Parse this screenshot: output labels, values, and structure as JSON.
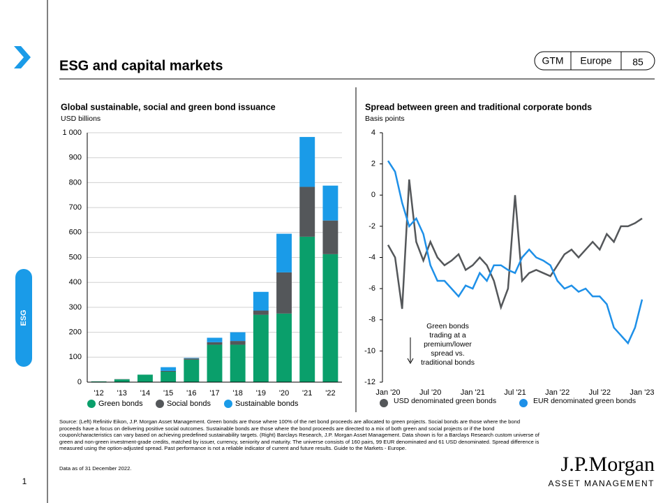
{
  "header": {
    "title": "ESG and capital markets",
    "badges": [
      "GTM",
      "Europe",
      "85"
    ]
  },
  "nav": {
    "section": "ESG"
  },
  "chart_data": [
    {
      "type": "bar",
      "stacked": true,
      "title": "Global sustainable, social and green bond issuance",
      "subtitle": "USD billions",
      "categories": [
        "'12",
        "'13",
        "'14",
        "'15",
        "'16",
        "'17",
        "'18",
        "'19",
        "'20",
        "'21",
        "'22"
      ],
      "series": [
        {
          "name": "Green bonds",
          "color": "#0a9f6b",
          "values": [
            3,
            11,
            30,
            42,
            90,
            150,
            150,
            270,
            275,
            583,
            513
          ]
        },
        {
          "name": "Social bonds",
          "color": "#54575a",
          "values": [
            0,
            1,
            0,
            3,
            5,
            10,
            15,
            17,
            165,
            200,
            135
          ]
        },
        {
          "name": "Sustainable bonds",
          "color": "#1a9be8",
          "values": [
            0,
            0,
            0,
            15,
            2,
            18,
            35,
            75,
            155,
            200,
            140
          ]
        }
      ],
      "ylim": [
        0,
        1000
      ],
      "yticks": [
        0,
        100,
        200,
        300,
        400,
        500,
        600,
        700,
        800,
        900,
        {
          "value": 1000,
          "label": "1 000"
        }
      ],
      "grid": true
    },
    {
      "type": "line",
      "title": "Spread between green and traditional corporate bonds",
      "subtitle": "Basis points",
      "x": [
        "2020-01",
        "2020-02",
        "2020-03",
        "2020-04",
        "2020-05",
        "2020-06",
        "2020-07",
        "2020-08",
        "2020-09",
        "2020-10",
        "2020-11",
        "2020-12",
        "2021-01",
        "2021-02",
        "2021-03",
        "2021-04",
        "2021-05",
        "2021-06",
        "2021-07",
        "2021-08",
        "2021-09",
        "2021-10",
        "2021-11",
        "2021-12",
        "2022-01",
        "2022-02",
        "2022-03",
        "2022-04",
        "2022-05",
        "2022-06",
        "2022-07",
        "2022-08",
        "2022-09",
        "2022-10",
        "2022-11",
        "2022-12",
        "2023-01"
      ],
      "series": [
        {
          "name": "USD denominated green bonds",
          "color": "#54575a",
          "values": [
            -3.2,
            -4,
            -7.3,
            1,
            -3,
            -4.2,
            -3,
            -4,
            -4.5,
            -4.2,
            -3.8,
            -4.8,
            -4.5,
            -4,
            -4.5,
            -5.5,
            -7.2,
            -6,
            0,
            -5.5,
            -5,
            -4.8,
            -5,
            -5.2,
            -4.5,
            -3.8,
            -3.5,
            -4,
            -3.5,
            -3,
            -3.5,
            -2.5,
            -3,
            -2,
            -2,
            -1.8,
            -1.5
          ]
        },
        {
          "name": "EUR denominated green bonds",
          "color": "#1e90e8",
          "values": [
            2.2,
            1.5,
            -0.5,
            -2,
            -1.5,
            -2.5,
            -4.5,
            -5.5,
            -5.5,
            -6,
            -6.5,
            -5.8,
            -6,
            -5,
            -5.5,
            -4.5,
            -4.5,
            -4.8,
            -5,
            -4,
            -3.5,
            -4,
            -4.2,
            -4.5,
            -5.5,
            -6,
            -5.8,
            -6.2,
            -6,
            -6.5,
            -6.5,
            -7,
            -8.5,
            -9,
            -9.5,
            -8.5,
            -6.7
          ]
        }
      ],
      "xlim": [
        "2020-01",
        "2023-01"
      ],
      "xticks": [
        {
          "value": "2020-01",
          "label": "Jan '20"
        },
        {
          "value": "2020-07",
          "label": "Jul '20"
        },
        {
          "value": "2021-01",
          "label": "Jan '21"
        },
        {
          "value": "2021-07",
          "label": "Jul '21"
        },
        {
          "value": "2022-01",
          "label": "Jan '22"
        },
        {
          "value": "2022-07",
          "label": "Jul '22"
        },
        {
          "value": "2023-01",
          "label": "Jan '23"
        }
      ],
      "ylim": [
        -12,
        4
      ],
      "yticks": [
        -12,
        -10,
        -8,
        -6,
        -4,
        -2,
        0,
        2,
        4
      ],
      "grid": false,
      "annotation": "Green bonds trading at a premium/lower spread vs. traditional bonds"
    }
  ],
  "footer": {
    "source": "Source: (Left) Refinitiv Eikon, J.P. Morgan Asset Management. Green bonds are those where 100% of the net bond proceeds are allocated to green projects. Social bonds are those where the bond proceeds have a focus on delivering positive social outcomes. Sustainable bonds are those where the bond proceeds are directed to a mix of both green and social projects or if the bond coupon/characteristics can vary based on achieving predefined sustainability targets. (Right) Barclays Research, J.P. Morgan Asset Management. Data shown is for a Barclays Research custom universe of green and non-green investment-grade credits, matched by issuer, currency, seniority and maturity. The universe consists of 160 pairs, 99 EUR denominated and 61 USD denominated. Spread difference is measured using the option-adjusted spread. Past performance is not a reliable indicator of current and future results. Guide to the Markets - Europe.",
    "date": "Data as of 31 December 2022.",
    "page": "1"
  },
  "logo": {
    "name": "J.P.Morgan",
    "sub": "ASSET MANAGEMENT"
  }
}
